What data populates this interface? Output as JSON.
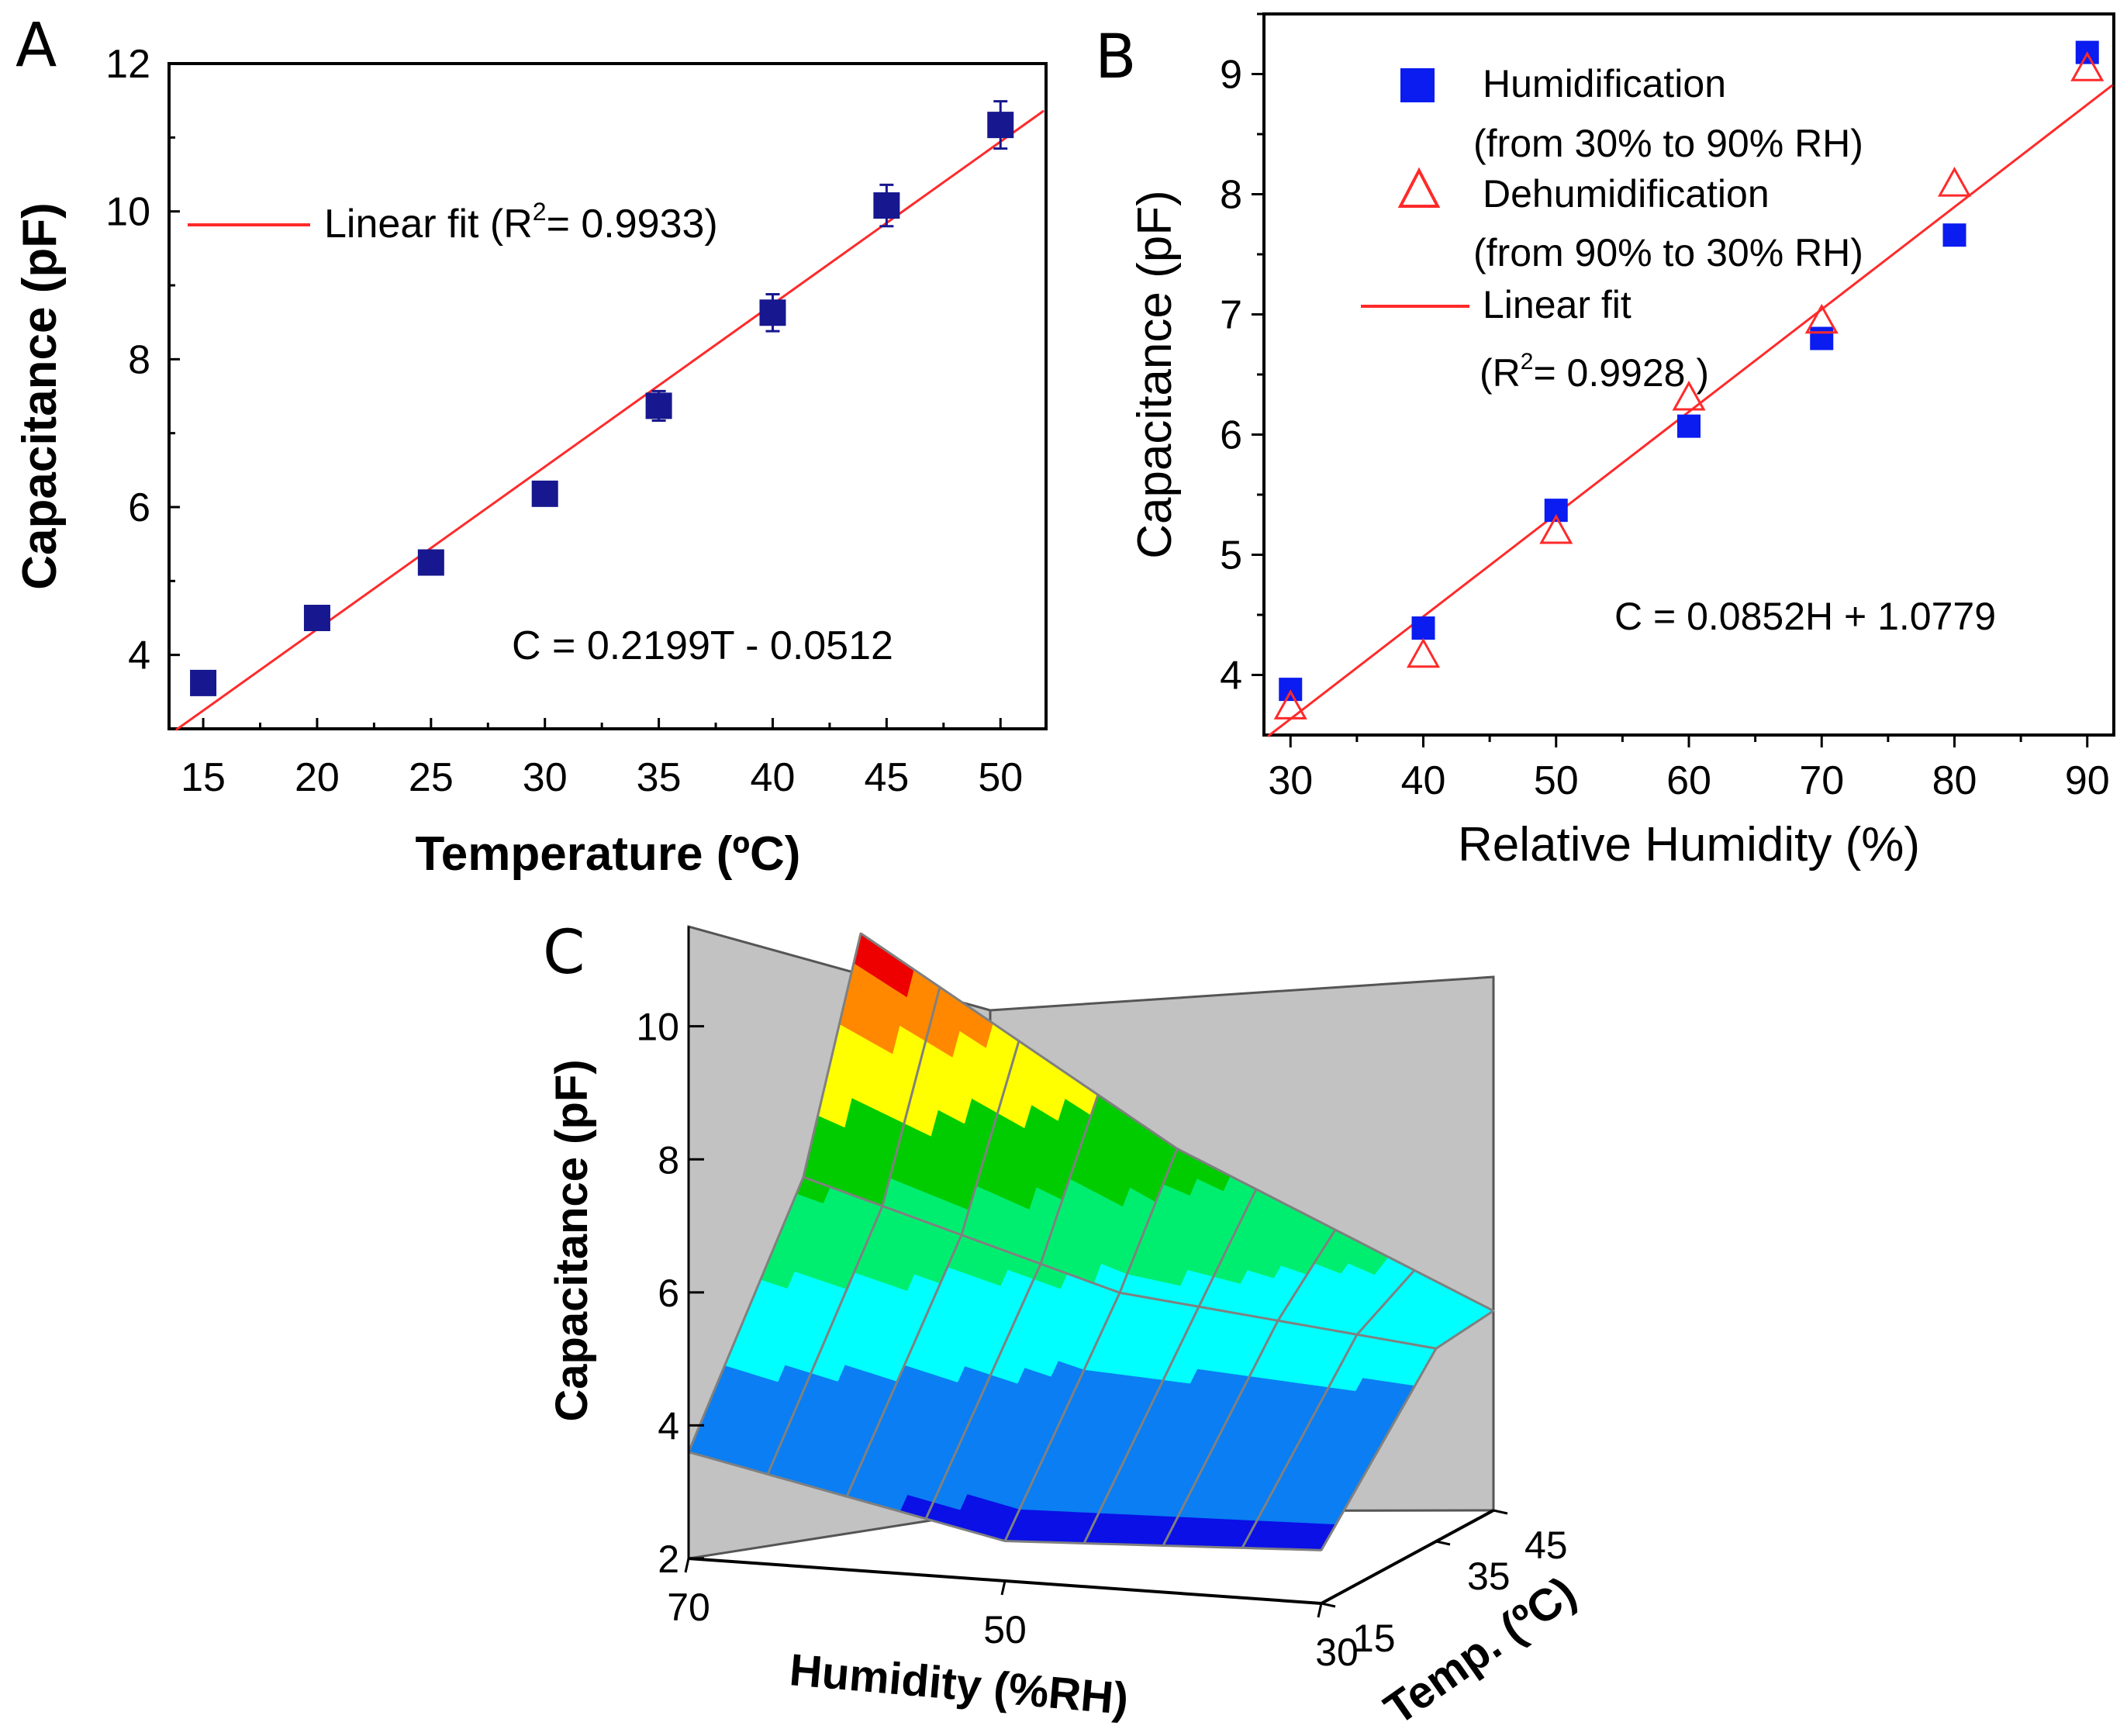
{
  "colors": {
    "fit_line": "#ff2a2a",
    "marker_a": "#17178f",
    "marker_b": "#0a1cf0",
    "marker_b_open": "#ff2a2a",
    "wall": "#c2c2c2",
    "axis": "#000000"
  },
  "chart_data": [
    {
      "panel": "A",
      "type": "scatter",
      "xlabel": "Temperature (ºC)",
      "ylabel": "Capacitance (pF)",
      "xlim": [
        13.5,
        52
      ],
      "ylim": [
        3,
        12
      ],
      "x_ticks": [
        15,
        20,
        25,
        30,
        35,
        40,
        45,
        50
      ],
      "y_ticks": [
        4,
        6,
        8,
        10,
        12
      ],
      "series": [
        {
          "name": "Capacitance",
          "marker": "filled-square",
          "x": [
            15,
            20,
            25,
            30,
            35,
            40,
            45,
            50
          ],
          "y": [
            3.62,
            4.5,
            5.25,
            6.18,
            7.37,
            8.63,
            10.08,
            11.17
          ],
          "err": [
            0.12,
            0.12,
            0.12,
            0.12,
            0.2,
            0.25,
            0.28,
            0.32
          ]
        }
      ],
      "fit": {
        "name": "Linear fit",
        "slope": 0.2199,
        "intercept": -0.0512
      },
      "legend": {
        "prefix": "Linear fit (R",
        "sup": "2",
        "suffix": "= 0.9933)",
        "placement": "top-left"
      },
      "equation": "C = 0.2199T - 0.0512"
    },
    {
      "panel": "B",
      "type": "scatter",
      "xlabel": "Relative Humidity (%)",
      "ylabel": "Capacitance (pF)",
      "xlim": [
        28,
        92
      ],
      "ylim": [
        3.5,
        9.5
      ],
      "x_ticks": [
        30,
        40,
        50,
        60,
        70,
        80,
        90
      ],
      "y_ticks": [
        4,
        5,
        6,
        7,
        8,
        9
      ],
      "series": [
        {
          "name": "Humidification",
          "note": "(from 30% to 90% RH)",
          "marker": "filled-square",
          "x": [
            30,
            40,
            50,
            60,
            70,
            80,
            90
          ],
          "y": [
            3.88,
            4.39,
            5.37,
            6.07,
            6.8,
            7.66,
            9.18
          ]
        },
        {
          "name": "Dehumidification",
          "note": "(from 90% to 30% RH)",
          "marker": "open-triangle",
          "x": [
            30,
            40,
            50,
            60,
            70,
            80,
            90
          ],
          "y": [
            3.73,
            4.16,
            5.19,
            6.3,
            6.94,
            8.08,
            9.04
          ]
        }
      ],
      "fit": {
        "name": "Linear fit",
        "slope": 0.0852,
        "intercept": 1.0779
      },
      "legend": {
        "fit_label": "Linear fit",
        "r2_prefix": "(R",
        "r2_sup": "2",
        "r2_suffix": "= 0.9928 )",
        "placement": "top-left"
      },
      "equation": "C = 0.0852H + 1.0779"
    },
    {
      "panel": "C",
      "type": "surface",
      "xlabel": "Humidity (%RH)",
      "ylabel": "Temp. (ºC)",
      "zlabel": "Capacitance (pF)",
      "x_ticks": [
        70,
        50,
        30
      ],
      "y_ticks": [
        15,
        35,
        45
      ],
      "z_ticks": [
        2,
        4,
        6,
        8,
        10
      ],
      "zlim": [
        2,
        11.5
      ],
      "humidity": [
        30,
        50,
        70
      ],
      "temperature": [
        15,
        35,
        45
      ],
      "capacitance": [
        [
          2.8,
          2.6,
          3.6
        ],
        [
          4.9,
          5.4,
          6.8
        ],
        [
          5.0,
          7.1,
          10.0
        ]
      ],
      "color_bands": [
        {
          "from": 2.0,
          "to": 3.0,
          "color": "#0a10e6"
        },
        {
          "from": 3.0,
          "to": 4.5,
          "color": "#0a7ef2"
        },
        {
          "from": 4.5,
          "to": 5.6,
          "color": "#00ffff"
        },
        {
          "from": 5.6,
          "to": 6.6,
          "color": "#00ee70"
        },
        {
          "from": 6.6,
          "to": 7.6,
          "color": "#00cc00"
        },
        {
          "from": 7.6,
          "to": 8.6,
          "color": "#ffff00"
        },
        {
          "from": 8.6,
          "to": 9.4,
          "color": "#ff8800"
        },
        {
          "from": 9.4,
          "to": 11.0,
          "color": "#ee0000"
        }
      ]
    }
  ]
}
